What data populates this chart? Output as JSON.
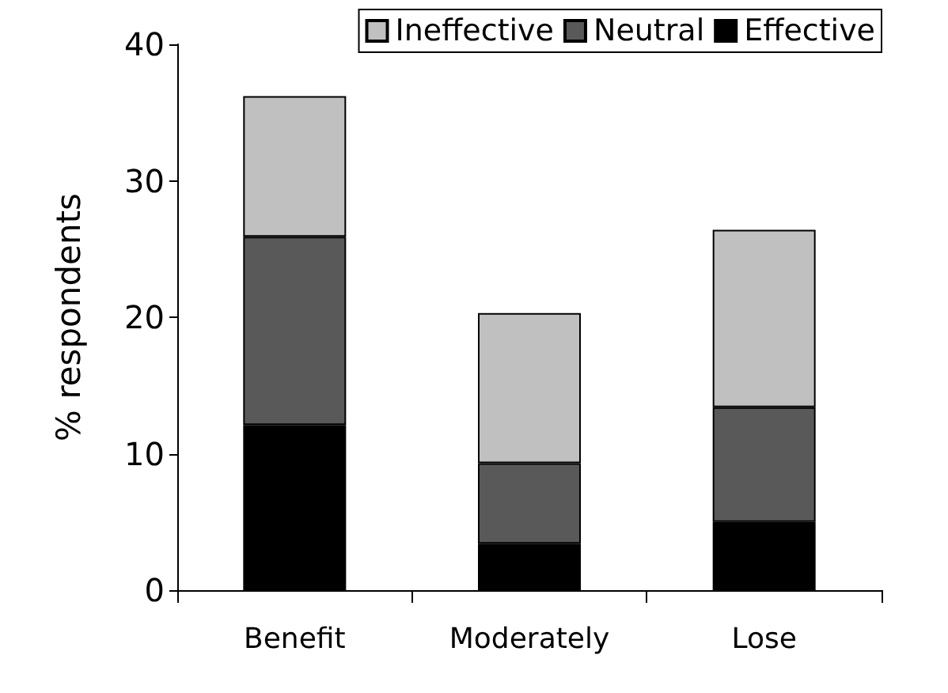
{
  "chart_data": {
    "type": "bar",
    "stacked": true,
    "ylabel": "% respondents",
    "categories": [
      "Benefit",
      "Moderately",
      "Lose"
    ],
    "series": [
      {
        "name": "Effective",
        "color": "#000000",
        "values": [
          12.1,
          3.4,
          5.0
        ]
      },
      {
        "name": "Neutral",
        "color": "#595959",
        "values": [
          13.8,
          5.9,
          8.4
        ]
      },
      {
        "name": "Ineffective",
        "color": "#c0c0c0",
        "values": [
          10.3,
          11.0,
          13.0
        ]
      }
    ],
    "ylim": [
      0,
      40
    ],
    "yticks": [
      0,
      10,
      20,
      30,
      40
    ],
    "grid": false,
    "legend": "top right"
  }
}
